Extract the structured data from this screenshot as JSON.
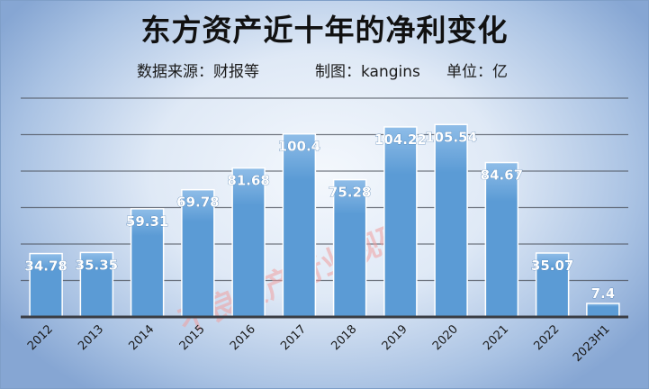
{
  "title": "东方资产近十年的净利变化",
  "subtitle": {
    "source": "数据来源：财报等",
    "author": "制图：kangins",
    "unit": "单位：亿"
  },
  "watermark": "不良资产行业观研",
  "colors": {
    "bar_fill": "#5b9bd5",
    "bar_top": "#8fbde8",
    "bar_border": "#ffffff",
    "grid": "#4a4f59",
    "axis": "#3a3d44",
    "data_label": "#ffffff",
    "watermark": "#f0a0a0"
  },
  "chart_data": {
    "type": "bar",
    "title": "东方资产近十年的净利变化",
    "xlabel": "",
    "ylabel": "",
    "unit": "亿",
    "categories": [
      "2012",
      "2013",
      "2014",
      "2015",
      "2016",
      "2017",
      "2018",
      "2019",
      "2020",
      "2021",
      "2022",
      "2023H1"
    ],
    "values": [
      34.78,
      35.35,
      59.31,
      69.78,
      81.68,
      100.4,
      75.28,
      104.22,
      105.54,
      84.67,
      35.07,
      7.4
    ],
    "data_labels": [
      "34.78",
      "35.35",
      "59.31",
      "69.78",
      "81.68",
      "100.4",
      "75.28",
      "104.22",
      "105.54",
      "84.67",
      "35.07",
      "7.4"
    ],
    "ylim": [
      0,
      120
    ],
    "y_gridlines": [
      20,
      40,
      60,
      80,
      100,
      120
    ],
    "grid": true,
    "legend": "none"
  }
}
